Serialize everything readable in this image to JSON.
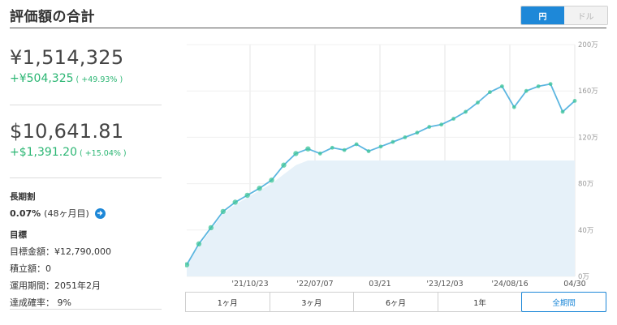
{
  "header": {
    "title": "評価額の合計",
    "currency_options": [
      "円",
      "ドル"
    ],
    "selected_currency": "円"
  },
  "summary": {
    "jpy": {
      "value": "¥1,514,325",
      "change": "+¥504,325",
      "pct": "( +49.93% )"
    },
    "usd": {
      "value": "$10,641.81",
      "change": "+$1,391.20",
      "pct": "( +15.04% )"
    }
  },
  "long_term": {
    "label": "長期割",
    "rate": "0.07%",
    "months": "(48ヶ月目)"
  },
  "goal": {
    "label": "目標",
    "rows": [
      "目標金額：¥12,790,000",
      "積立額：0",
      "運用期間：2051年2月",
      "達成確率： 9%"
    ]
  },
  "range_tabs": [
    "1ヶ月",
    "3ヶ月",
    "6ヶ月",
    "1年",
    "全期間"
  ],
  "selected_range": "全期間",
  "colors": {
    "accent": "#1e88d8",
    "positive": "#2bb673",
    "line": "#5cb6e0",
    "deposit_fill": "#e6f1f9",
    "dividend_marker": "#3ec49a"
  },
  "chart_data": {
    "type": "line",
    "title": "",
    "xlabel": "",
    "ylabel": "",
    "ylim": [
      0,
      2000000
    ],
    "ytick_values": [
      0,
      400000,
      800000,
      1200000,
      1600000,
      2000000
    ],
    "ytick_labels": [
      "0万",
      "40万",
      "80万",
      "120万",
      "160万",
      "200万"
    ],
    "xtick_labels": [
      "'21/10/23",
      "'22/07/07",
      "03/21",
      "'23/12/03",
      "'24/08/16",
      "04/30"
    ],
    "grid": true,
    "series": [
      {
        "x": [
          "'21/03",
          "'21/04",
          "'21/05",
          "'21/06",
          "'21/07",
          "'21/08",
          "'21/09",
          "'21/10",
          "'21/11",
          "'21/12",
          "'22/01",
          "'22/02",
          "'22/04",
          "'22/06",
          "'22/08",
          "'22/10",
          "'22/12",
          "'23/02",
          "'23/04",
          "'23/06",
          "'23/08",
          "'23/10",
          "'23/12",
          "'24/02",
          "'24/03",
          "'24/05",
          "'24/07",
          "'24/08",
          "'24/10",
          "'24/12",
          "'25/01",
          "'25/03",
          "'25/04"
        ],
        "values": [
          100000,
          280000,
          420000,
          560000,
          640000,
          700000,
          760000,
          830000,
          960000,
          1060000,
          1100000,
          1060000,
          1110000,
          1090000,
          1140000,
          1080000,
          1120000,
          1160000,
          1200000,
          1240000,
          1290000,
          1310000,
          1360000,
          1420000,
          1500000,
          1590000,
          1640000,
          1460000,
          1600000,
          1640000,
          1660000,
          1420000,
          1514325
        ]
      },
      {
        "values": [
          100000,
          260000,
          400000,
          540000,
          620000,
          680000,
          740000,
          800000,
          880000,
          960000,
          1000000,
          1000000,
          1000000,
          1000000,
          1000000,
          1000000,
          1000000,
          1000000,
          1000000,
          1000000,
          1000000,
          1000000,
          1000000,
          1000000,
          1000000,
          1000000,
          1000000,
          1000000,
          1000000,
          1000000,
          1000000,
          1000000,
          1000000
        ]
      }
    ]
  }
}
